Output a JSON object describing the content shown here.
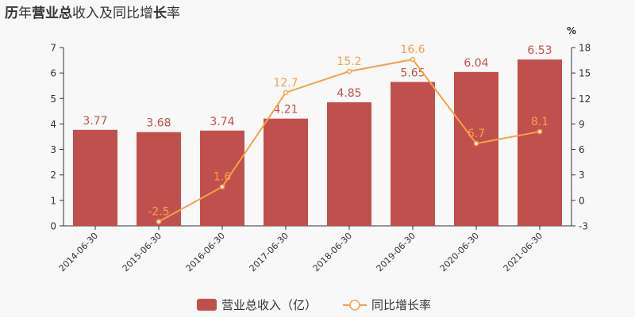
{
  "title": {
    "parts": [
      {
        "text": "历",
        "bold": true
      },
      {
        "text": "年",
        "bold": false
      },
      {
        "text": "营业总",
        "bold": true
      },
      {
        "text": "收入及同比增",
        "bold": false
      },
      {
        "text": "长",
        "bold": true
      },
      {
        "text": "率",
        "bold": false
      }
    ]
  },
  "chart_data": {
    "type": "bar",
    "title": "历年营业总收入及同比增长率",
    "categories": [
      "2014-06-30",
      "2015-06-30",
      "2016-06-30",
      "2017-06-30",
      "2018-06-30",
      "2019-06-30",
      "2020-06-30",
      "2021-06-30"
    ],
    "series": [
      {
        "name": "营业总收入（亿）",
        "type": "bar",
        "axis": "left",
        "color": "#c0504d",
        "values": [
          3.77,
          3.68,
          3.74,
          4.21,
          4.85,
          5.65,
          6.04,
          6.53
        ],
        "labels": [
          "3.77",
          "3.68",
          "3.74",
          "4.21",
          "4.85",
          "5.65",
          "6.04",
          "6.53"
        ]
      },
      {
        "name": "同比增长率",
        "type": "line",
        "axis": "right",
        "color": "#f4a14b",
        "values": [
          null,
          -2.5,
          1.6,
          12.7,
          15.2,
          16.6,
          6.7,
          8.1
        ],
        "labels": [
          "",
          "-2.5",
          "1.6",
          "12.7",
          "15.2",
          "16.6",
          "6.7",
          "8.1"
        ]
      }
    ],
    "y_left": {
      "ylim": [
        0,
        7
      ],
      "ticks": [
        "0",
        "1",
        "2",
        "3",
        "4",
        "5",
        "6",
        "7"
      ]
    },
    "y_right": {
      "unit": "%",
      "ylim": [
        -3,
        18
      ],
      "ticks": [
        "-3",
        "0",
        "3",
        "6",
        "9",
        "12",
        "15",
        "18"
      ]
    },
    "legend_position": "bottom-center",
    "grid": false
  }
}
